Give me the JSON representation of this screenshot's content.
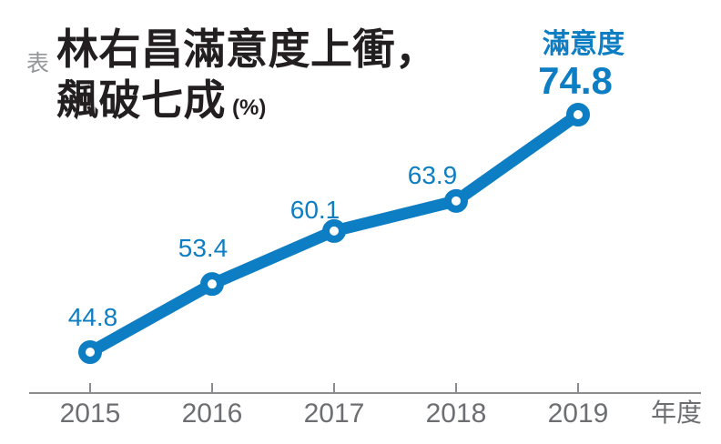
{
  "header": {
    "tag": "表",
    "title_line1": "林右昌滿意度上衝，",
    "title_line2": "飆破七成",
    "unit": "(%)"
  },
  "chart_data": {
    "type": "line",
    "title": "林右昌滿意度上衝，飆破七成",
    "unit": "%",
    "categories": [
      "2015",
      "2016",
      "2017",
      "2018",
      "2019"
    ],
    "series": [
      {
        "name": "滿意度",
        "values": [
          44.8,
          53.4,
          60.1,
          63.9,
          74.8
        ]
      }
    ],
    "xlabel": "年度",
    "ylabel": "",
    "grid": false,
    "legend": {
      "label": "滿意度",
      "position": "above-last-point"
    },
    "value_labels_shown": true,
    "colors": {
      "line": "#0d7ec4",
      "marker_fill": "#ffffff",
      "value_label": "#0d7ec4",
      "axis": "#8a8c8f",
      "axis_label": "#6d6e71",
      "title": "#231f20",
      "tag": "#939598"
    }
  }
}
